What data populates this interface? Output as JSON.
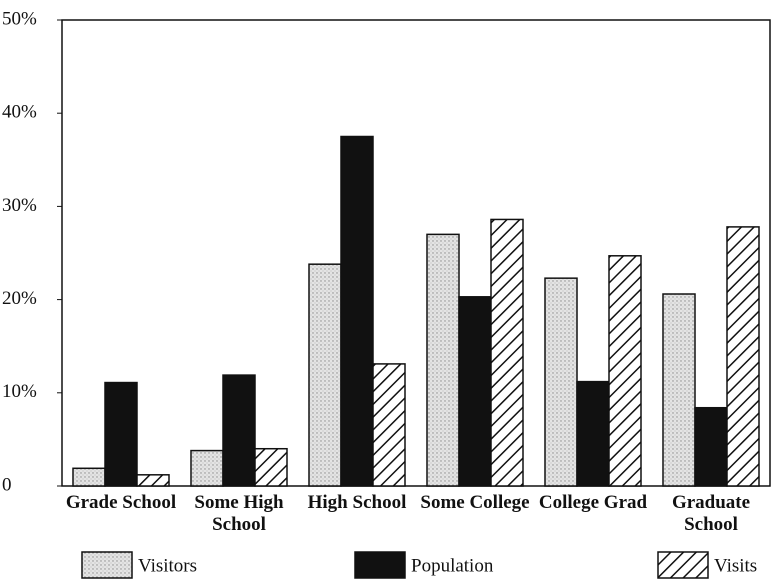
{
  "chart_data": {
    "type": "bar",
    "categories": [
      "Grade School",
      "Some High School",
      "High School",
      "Some College",
      "College Grad",
      "Graduate School"
    ],
    "series": [
      {
        "name": "Visitors",
        "color": "#dcdcdc",
        "pattern": "dots",
        "values": [
          1.9,
          3.8,
          23.8,
          27.0,
          22.3,
          20.6
        ]
      },
      {
        "name": "Population",
        "color": "#111111",
        "pattern": "solid",
        "values": [
          11.1,
          11.9,
          37.5,
          20.3,
          11.2,
          8.4
        ]
      },
      {
        "name": "Visits",
        "color": "#ffffff",
        "pattern": "hatch",
        "values": [
          1.2,
          4.0,
          13.1,
          28.6,
          24.7,
          27.8
        ]
      }
    ],
    "ylim": [
      0,
      50
    ],
    "yticks": [
      0,
      {
        "value": 10,
        "label": "10%"
      },
      {
        "value": 20,
        "label": "20%"
      },
      {
        "value": 30,
        "label": "30%"
      },
      {
        "value": 40,
        "label": "40%"
      },
      {
        "value": 50,
        "label": "50%"
      }
    ]
  }
}
